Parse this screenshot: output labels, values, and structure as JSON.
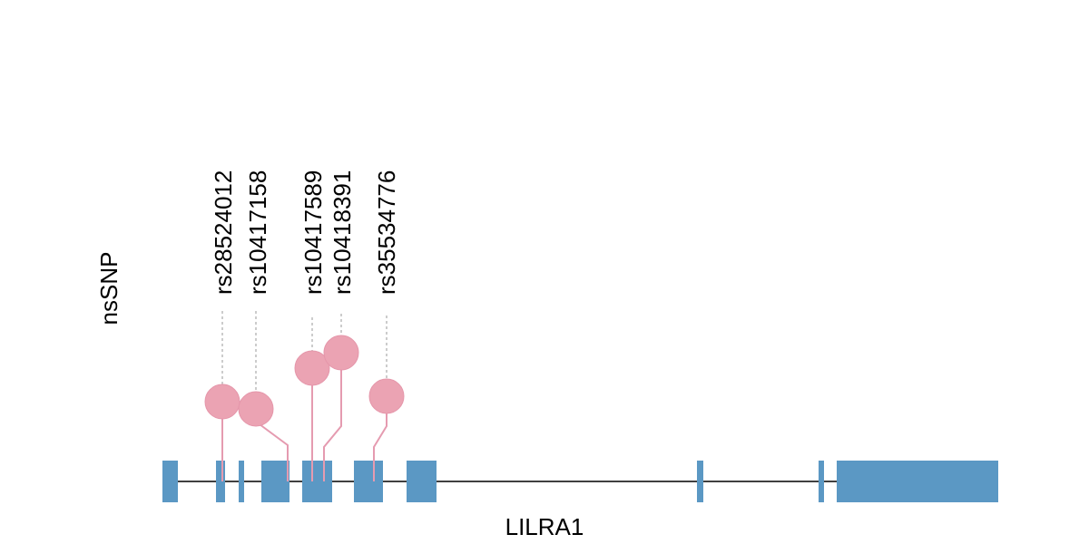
{
  "y_label": "nsSNP",
  "gene": "LILRA1",
  "snps": [
    {
      "label": "rs28524012"
    },
    {
      "label": "rs10417158"
    },
    {
      "label": "rs10417589"
    },
    {
      "label": "rs10418391"
    },
    {
      "label": "rs35534776"
    }
  ]
}
